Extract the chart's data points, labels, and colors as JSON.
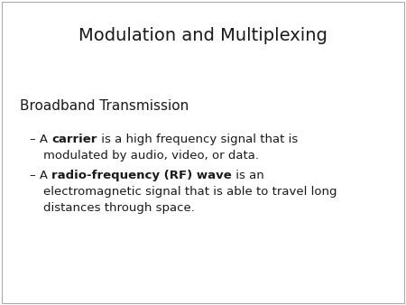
{
  "title": "Modulation and Multiplexing",
  "background_color": "#ffffff",
  "title_fontsize": 14,
  "text_color": "#1a1a1a",
  "section_heading": "Broadband Transmission",
  "section_heading_fontsize": 11,
  "section_heading_bold": false,
  "bullet1_dash": "– A ",
  "bullet1_bold": "carrier",
  "bullet1_rest1": " is a high frequency signal that is",
  "bullet1_rest2": "modulated by audio, video, or data.",
  "bullet2_dash": "– A ",
  "bullet2_bold": "radio-frequency (RF) wave",
  "bullet2_rest1": " is an",
  "bullet2_rest2": "electromagnetic signal that is able to travel long",
  "bullet2_rest3": "distances through space.",
  "bullet_fontsize": 9.5,
  "border_color": "#aaaaaa"
}
